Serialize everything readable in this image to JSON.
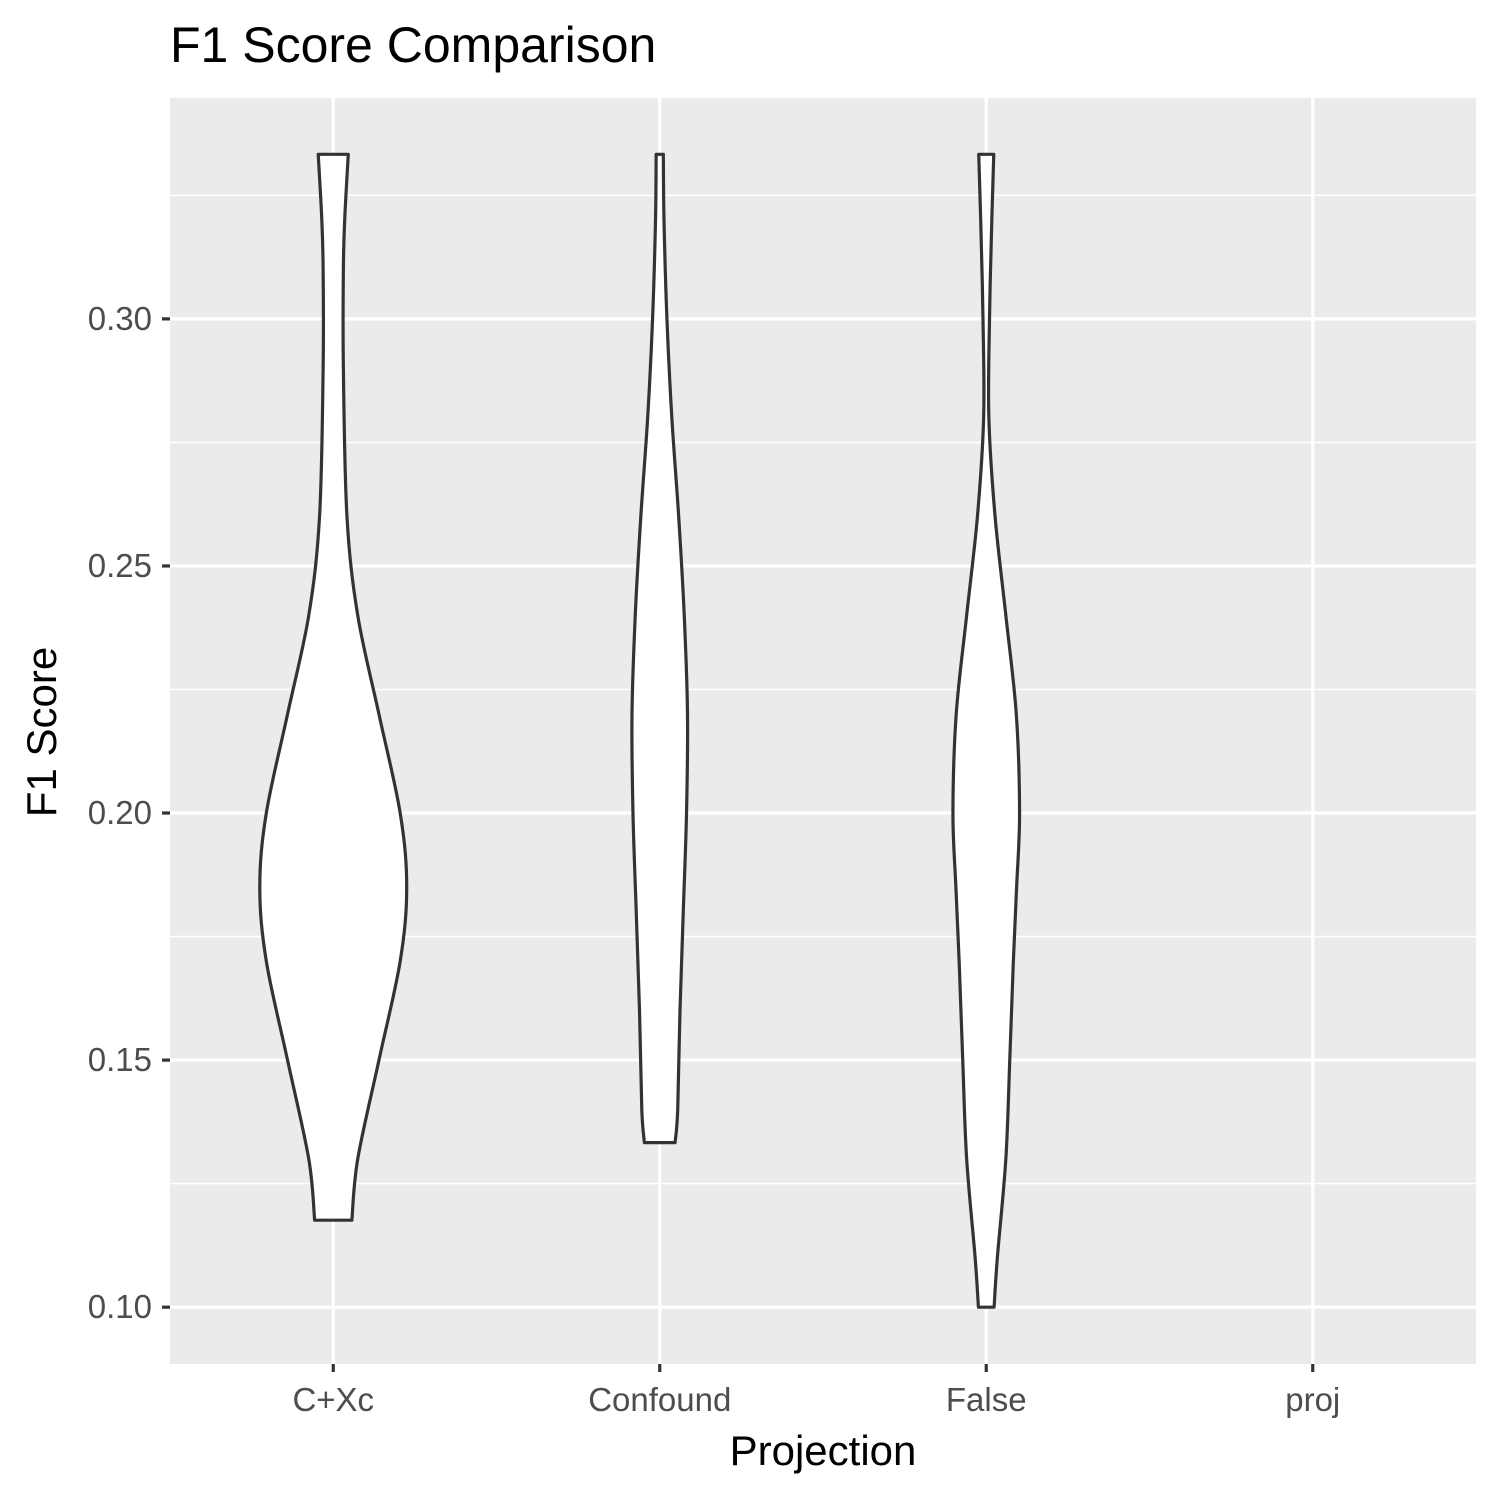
{
  "chart_data": {
    "type": "violin",
    "title": "F1 Score Comparison",
    "xlabel": "Projection",
    "ylabel": "F1 Score",
    "categories": [
      "C+Xc",
      "Confound",
      "False",
      "proj"
    ],
    "y_ticks": [
      0.1,
      0.15,
      0.2,
      0.25,
      0.3
    ],
    "y_tick_labels": [
      "0.10",
      "0.15",
      "0.20",
      "0.25",
      "0.30"
    ],
    "ylim": [
      0.0885,
      0.3447
    ],
    "grid": true,
    "legend": "none",
    "series": [
      {
        "category": "C+Xc",
        "min": 0.1176,
        "max": 0.3333,
        "profile": [
          {
            "y": 0.1176,
            "half_width": 0.057
          },
          {
            "y": 0.13,
            "half_width": 0.075
          },
          {
            "y": 0.15,
            "half_width": 0.14
          },
          {
            "y": 0.17,
            "half_width": 0.205
          },
          {
            "y": 0.185,
            "half_width": 0.225
          },
          {
            "y": 0.2,
            "half_width": 0.205
          },
          {
            "y": 0.22,
            "half_width": 0.14
          },
          {
            "y": 0.24,
            "half_width": 0.075
          },
          {
            "y": 0.26,
            "half_width": 0.042
          },
          {
            "y": 0.29,
            "half_width": 0.031
          },
          {
            "y": 0.31,
            "half_width": 0.031
          },
          {
            "y": 0.32,
            "half_width": 0.035
          },
          {
            "y": 0.3333,
            "half_width": 0.046
          }
        ]
      },
      {
        "category": "Confound",
        "min": 0.1333,
        "max": 0.3333,
        "profile": [
          {
            "y": 0.1333,
            "half_width": 0.047
          },
          {
            "y": 0.14,
            "half_width": 0.055
          },
          {
            "y": 0.16,
            "half_width": 0.062
          },
          {
            "y": 0.18,
            "half_width": 0.072
          },
          {
            "y": 0.2,
            "half_width": 0.082
          },
          {
            "y": 0.22,
            "half_width": 0.085
          },
          {
            "y": 0.24,
            "half_width": 0.075
          },
          {
            "y": 0.26,
            "half_width": 0.058
          },
          {
            "y": 0.28,
            "half_width": 0.037
          },
          {
            "y": 0.3,
            "half_width": 0.022
          },
          {
            "y": 0.32,
            "half_width": 0.013
          },
          {
            "y": 0.3333,
            "half_width": 0.011
          }
        ]
      },
      {
        "category": "False",
        "min": 0.1,
        "max": 0.3333,
        "profile": [
          {
            "y": 0.1,
            "half_width": 0.024
          },
          {
            "y": 0.11,
            "half_width": 0.034
          },
          {
            "y": 0.13,
            "half_width": 0.06
          },
          {
            "y": 0.15,
            "half_width": 0.072
          },
          {
            "y": 0.17,
            "half_width": 0.083
          },
          {
            "y": 0.185,
            "half_width": 0.093
          },
          {
            "y": 0.2,
            "half_width": 0.102
          },
          {
            "y": 0.22,
            "half_width": 0.092
          },
          {
            "y": 0.24,
            "half_width": 0.06
          },
          {
            "y": 0.26,
            "half_width": 0.027
          },
          {
            "y": 0.28,
            "half_width": 0.008
          },
          {
            "y": 0.3,
            "half_width": 0.01
          },
          {
            "y": 0.32,
            "half_width": 0.017
          },
          {
            "y": 0.3333,
            "half_width": 0.023
          }
        ]
      },
      {
        "category": "proj",
        "min": null,
        "max": null,
        "profile": []
      }
    ],
    "colors": {
      "panel": "#EBEBEB",
      "grid": "#FFFFFF",
      "violin_fill": "#FFFFFF",
      "violin_stroke": "#333333",
      "tick_mark": "#333333"
    }
  }
}
